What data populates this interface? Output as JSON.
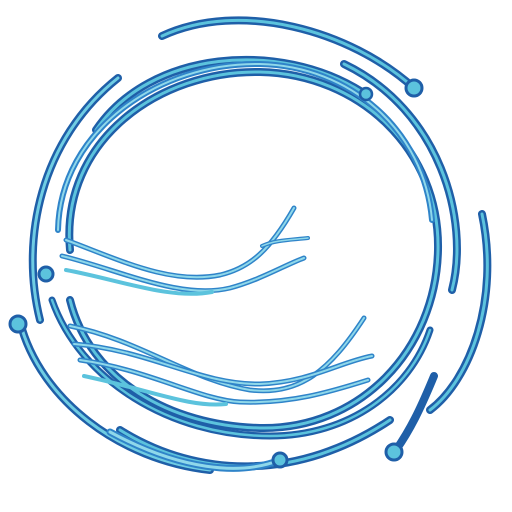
{
  "artwork": {
    "kind": "abstract circular logo",
    "palette": {
      "dark_blue": "#1f5fa8",
      "mid_blue": "#2f84c9",
      "light_cyan": "#5cc3dd",
      "pale_cyan": "#8fd8ea",
      "background": "#ffffff"
    },
    "icons": [
      "circuit-ring-icon",
      "node-dot-icon",
      "branching-strand-icon"
    ]
  }
}
